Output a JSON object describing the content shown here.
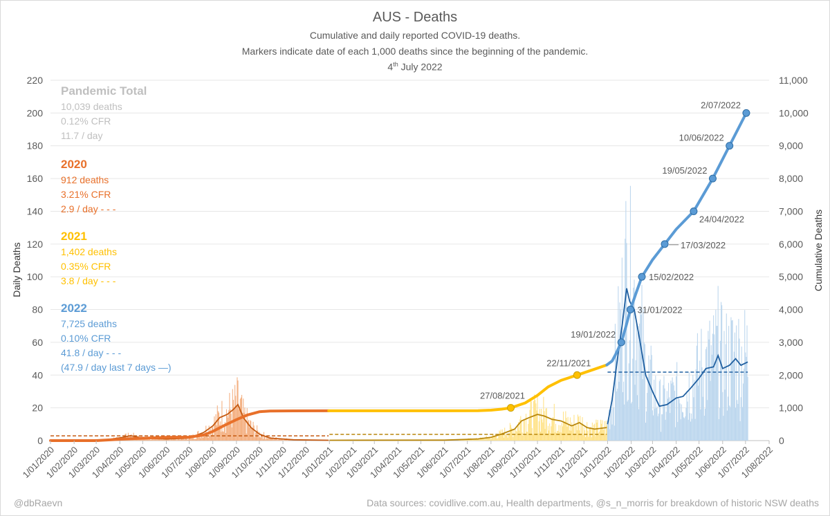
{
  "chart_data": {
    "type": "line",
    "title": "AUS - Deaths",
    "subtitle_lines": [
      "Cumulative and daily reported COVID-19 deaths.",
      "Markers indicate date of each 1,000 deaths since the beginning of the pandemic."
    ],
    "date_day": "4",
    "date_suffix": "th",
    "date_rest": " July 2022",
    "ylabel_left": "Daily Deaths",
    "ylabel_right": "Cumulative Deaths",
    "ylim_left": [
      0,
      220
    ],
    "ylim_right": [
      0,
      11000
    ],
    "left_ticks": [
      "0",
      "20",
      "40",
      "60",
      "80",
      "100",
      "120",
      "140",
      "160",
      "180",
      "200",
      "220"
    ],
    "right_ticks": [
      "0",
      "1,000",
      "2,000",
      "3,000",
      "4,000",
      "5,000",
      "6,000",
      "7,000",
      "8,000",
      "9,000",
      "10,000",
      "11,000"
    ],
    "x_ticks": [
      "1/01/2020",
      "1/02/2020",
      "1/03/2020",
      "1/04/2020",
      "1/05/2020",
      "1/06/2020",
      "1/07/2020",
      "1/08/2020",
      "1/09/2020",
      "1/10/2020",
      "1/11/2020",
      "1/12/2020",
      "1/01/2021",
      "1/02/2021",
      "1/03/2021",
      "1/04/2021",
      "1/05/2021",
      "1/06/2021",
      "1/07/2021",
      "1/08/2021",
      "1/09/2021",
      "1/10/2021",
      "1/11/2021",
      "1/12/2021",
      "1/01/2022",
      "1/02/2022",
      "1/03/2022",
      "1/04/2022",
      "1/05/2022",
      "1/06/2022",
      "1/07/2022",
      "1/08/2022"
    ],
    "grid": true,
    "colors": {
      "y2020": "#e8702a",
      "y2021": "#ffc000",
      "y2022": "#5b9bd5",
      "total": "#bfbfbf",
      "avg2020": "#c55a11",
      "avg2021": "#b8860b",
      "avg2022": "#1f5fa0",
      "bar2020": "#f4b183",
      "bar2021": "#ffe38a",
      "bar2022": "#bdd7ee"
    },
    "cumulative_series": [
      {
        "year": "2020",
        "color": "#e8702a",
        "points": [
          [
            "2020-01-01",
            0
          ],
          [
            "2020-03-01",
            0
          ],
          [
            "2020-04-15",
            60
          ],
          [
            "2020-06-01",
            102
          ],
          [
            "2020-07-01",
            106
          ],
          [
            "2020-07-20",
            170
          ],
          [
            "2020-08-01",
            280
          ],
          [
            "2020-08-15",
            450
          ],
          [
            "2020-09-01",
            640
          ],
          [
            "2020-09-15",
            780
          ],
          [
            "2020-10-01",
            880
          ],
          [
            "2020-10-15",
            904
          ],
          [
            "2020-11-15",
            908
          ],
          [
            "2020-12-31",
            909
          ]
        ]
      },
      {
        "year": "2021",
        "color": "#ffc000",
        "points": [
          [
            "2020-12-31",
            909
          ],
          [
            "2021-06-01",
            910
          ],
          [
            "2021-07-15",
            915
          ],
          [
            "2021-08-01",
            930
          ],
          [
            "2021-08-15",
            960
          ],
          [
            "2021-08-27",
            1000
          ],
          [
            "2021-09-15",
            1150
          ],
          [
            "2021-10-01",
            1380
          ],
          [
            "2021-10-15",
            1640
          ],
          [
            "2021-11-01",
            1840
          ],
          [
            "2021-11-22",
            2000
          ],
          [
            "2021-12-15",
            2180
          ],
          [
            "2021-12-31",
            2310
          ]
        ]
      },
      {
        "year": "2022",
        "color": "#5b9bd5",
        "points": [
          [
            "2021-12-31",
            2310
          ],
          [
            "2022-01-07",
            2430
          ],
          [
            "2022-01-12",
            2650
          ],
          [
            "2022-01-19",
            3000
          ],
          [
            "2022-01-25",
            3480
          ],
          [
            "2022-01-31",
            4000
          ],
          [
            "2022-02-07",
            4480
          ],
          [
            "2022-02-15",
            5000
          ],
          [
            "2022-03-01",
            5520
          ],
          [
            "2022-03-17",
            6000
          ],
          [
            "2022-04-01",
            6450
          ],
          [
            "2022-04-24",
            7000
          ],
          [
            "2022-05-19",
            8000
          ],
          [
            "2022-06-10",
            9000
          ],
          [
            "2022-07-02",
            10000
          ],
          [
            "2022-07-04",
            10039
          ]
        ]
      }
    ],
    "milestones": [
      {
        "date": "2021-08-27",
        "value": 1000,
        "label": "27/08/2021",
        "color": "#ffc000"
      },
      {
        "date": "2021-11-22",
        "value": 2000,
        "label": "22/11/2021",
        "color": "#ffc000"
      },
      {
        "date": "2022-01-19",
        "value": 3000,
        "label": "19/01/2022",
        "color": "#5b9bd5"
      },
      {
        "date": "2022-01-31",
        "value": 4000,
        "label": "31/01/2022",
        "color": "#5b9bd5"
      },
      {
        "date": "2022-02-15",
        "value": 5000,
        "label": "15/02/2022",
        "color": "#5b9bd5"
      },
      {
        "date": "2022-03-17",
        "value": 6000,
        "label": "17/03/2022",
        "color": "#5b9bd5"
      },
      {
        "date": "2022-04-24",
        "value": 7000,
        "label": "24/04/2022",
        "color": "#5b9bd5"
      },
      {
        "date": "2022-05-19",
        "value": 8000,
        "label": "19/05/2022",
        "color": "#5b9bd5"
      },
      {
        "date": "2022-06-10",
        "value": 9000,
        "label": "10/06/2022",
        "color": "#5b9bd5"
      },
      {
        "date": "2022-07-02",
        "value": 10000,
        "label": "2/07/2022",
        "color": "#5b9bd5"
      }
    ],
    "daily_7day_avg": [
      {
        "year": "2020",
        "color": "#c55a11",
        "points": [
          [
            "2020-01-01",
            0
          ],
          [
            "2020-03-15",
            0.5
          ],
          [
            "2020-04-05",
            2
          ],
          [
            "2020-04-15",
            3
          ],
          [
            "2020-05-01",
            1.5
          ],
          [
            "2020-06-01",
            1
          ],
          [
            "2020-07-01",
            1.5
          ],
          [
            "2020-07-20",
            5
          ],
          [
            "2020-08-01",
            9
          ],
          [
            "2020-08-10",
            14
          ],
          [
            "2020-08-20",
            16
          ],
          [
            "2020-08-28",
            19
          ],
          [
            "2020-09-03",
            22
          ],
          [
            "2020-09-10",
            14
          ],
          [
            "2020-09-20",
            8
          ],
          [
            "2020-10-01",
            4
          ],
          [
            "2020-10-15",
            1.5
          ],
          [
            "2020-11-15",
            0.5
          ],
          [
            "2020-12-31",
            0.2
          ]
        ]
      },
      {
        "year": "2021",
        "color": "#b8860b",
        "points": [
          [
            "2021-01-01",
            0.2
          ],
          [
            "2021-06-01",
            0.3
          ],
          [
            "2021-07-15",
            1
          ],
          [
            "2021-08-01",
            2
          ],
          [
            "2021-08-15",
            4
          ],
          [
            "2021-09-01",
            7
          ],
          [
            "2021-09-10",
            12
          ],
          [
            "2021-09-20",
            14
          ],
          [
            "2021-10-01",
            16
          ],
          [
            "2021-10-10",
            15
          ],
          [
            "2021-10-20",
            13
          ],
          [
            "2021-11-01",
            12
          ],
          [
            "2021-11-15",
            9
          ],
          [
            "2021-11-25",
            11
          ],
          [
            "2021-12-05",
            8
          ],
          [
            "2021-12-15",
            7
          ],
          [
            "2021-12-31",
            8
          ]
        ]
      },
      {
        "year": "2022",
        "color": "#1f5fa0",
        "points": [
          [
            "2022-01-01",
            10
          ],
          [
            "2022-01-07",
            25
          ],
          [
            "2022-01-14",
            50
          ],
          [
            "2022-01-20",
            70
          ],
          [
            "2022-01-26",
            93
          ],
          [
            "2022-01-30",
            85
          ],
          [
            "2022-02-05",
            80
          ],
          [
            "2022-02-12",
            62
          ],
          [
            "2022-02-20",
            40
          ],
          [
            "2022-03-01",
            30
          ],
          [
            "2022-03-10",
            21
          ],
          [
            "2022-03-20",
            22
          ],
          [
            "2022-04-01",
            26
          ],
          [
            "2022-04-10",
            27
          ],
          [
            "2022-04-20",
            32
          ],
          [
            "2022-05-01",
            38
          ],
          [
            "2022-05-10",
            44
          ],
          [
            "2022-05-20",
            45
          ],
          [
            "2022-05-26",
            52
          ],
          [
            "2022-06-01",
            44
          ],
          [
            "2022-06-10",
            46
          ],
          [
            "2022-06-18",
            50
          ],
          [
            "2022-06-25",
            46
          ],
          [
            "2022-07-04",
            48
          ]
        ]
      }
    ],
    "year_average_lines": [
      {
        "year": "2020",
        "value": 2.9,
        "from": "2020-01-01",
        "to": "2020-12-31",
        "color": "#c55a11"
      },
      {
        "year": "2021",
        "value": 3.8,
        "from": "2021-01-01",
        "to": "2021-12-31",
        "color": "#b8860b"
      },
      {
        "year": "2022",
        "value": 41.8,
        "from": "2022-01-01",
        "to": "2022-07-04",
        "color": "#1f5fa0"
      }
    ]
  },
  "stats": {
    "total": {
      "heading": "Pandemic Total",
      "lines": [
        "10,039 deaths",
        "0.12% CFR",
        "11.7 / day"
      ]
    },
    "y2020": {
      "heading": "2020",
      "lines": [
        "912 deaths",
        "3.21% CFR",
        "2.9 / day - - -"
      ]
    },
    "y2021": {
      "heading": "2021",
      "lines": [
        "1,402 deaths",
        "0.35% CFR",
        "3.8 / day - - -"
      ]
    },
    "y2022": {
      "heading": "2022",
      "lines": [
        "7,725 deaths",
        "0.10% CFR",
        "41.8 / day - - -",
        "(47.9 / day last 7 days —)"
      ]
    }
  },
  "footer": {
    "credit": "@dbRaevn",
    "sources": "Data sources: covidlive.com.au, Health departments, @s_n_morris for breakdown of historic NSW deaths"
  }
}
